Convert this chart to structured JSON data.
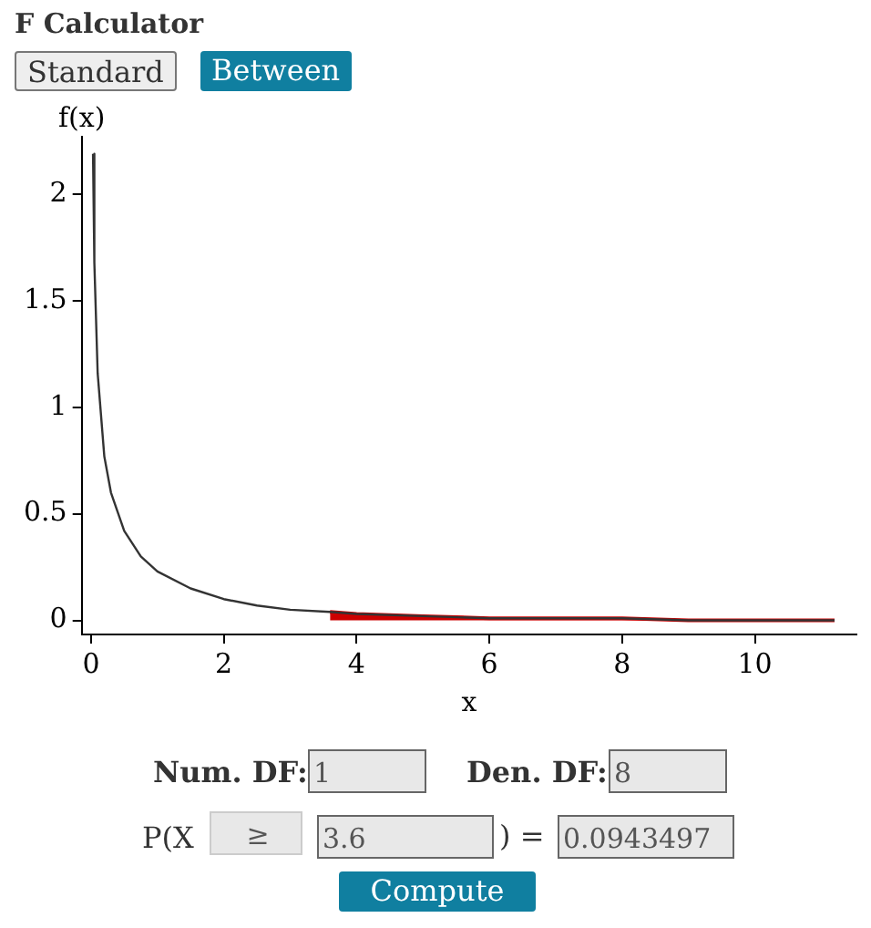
{
  "chart_data": {
    "type": "line",
    "title": "F Calculator",
    "xlabel": "x",
    "ylabel": "f(x)",
    "xlim": [
      -0.14,
      11.53
    ],
    "ylim": [
      -0.066,
      2.27
    ],
    "xticks": [
      0,
      2,
      4,
      6,
      8,
      10
    ],
    "yticks": [
      0,
      0.5,
      1,
      1.5,
      2
    ],
    "grid": false,
    "legend": false,
    "marker": "none",
    "line_style": "solid",
    "series": [
      {
        "type": "line",
        "color": "#333333",
        "x": [
          0.03,
          0.05,
          0.1,
          0.2,
          0.3,
          0.5,
          0.75,
          1,
          1.5,
          2,
          2.5,
          3,
          3.6,
          4,
          5,
          6,
          7,
          8,
          9,
          10,
          11.2
        ],
        "values": [
          2.19,
          1.68,
          1.16,
          0.77,
          0.6,
          0.42,
          0.3,
          0.23,
          0.15,
          0.1,
          0.07,
          0.05,
          0.04,
          0.03,
          0.02,
          0.01,
          0.01,
          0.01,
          0,
          0,
          0
        ]
      },
      {
        "type": "area",
        "color": "#cc0000",
        "x": [
          3.6,
          4,
          5,
          6,
          7,
          8,
          9,
          10,
          11.2
        ],
        "values": [
          0.04,
          0.03,
          0.02,
          0.01,
          0.01,
          0.01,
          0,
          0,
          0
        ]
      }
    ],
    "annotations": [
      "Standard",
      "Between",
      "Num. DF:",
      "1",
      "Den. DF:",
      "8",
      "P(X",
      "≥",
      "3.6",
      ") =",
      "0.0943497",
      "Compute"
    ]
  }
}
